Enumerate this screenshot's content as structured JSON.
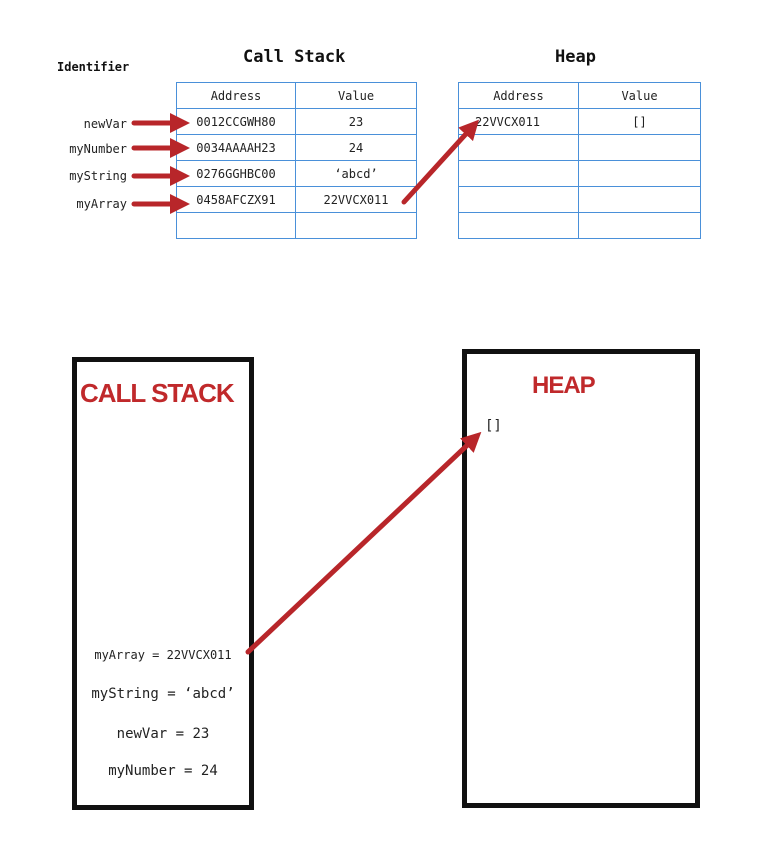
{
  "top": {
    "identifier_header": "Identifier",
    "call_stack_title": "Call Stack",
    "heap_title": "Heap",
    "stack_table": {
      "columns": [
        "Address",
        "Value"
      ],
      "rows": [
        {
          "identifier": "newVar",
          "address": "0012CCGWH80",
          "value": "23"
        },
        {
          "identifier": "myNumber",
          "address": "0034AAAAH23",
          "value": "24"
        },
        {
          "identifier": "myString",
          "address": "0276GGHBC00",
          "value": "‘abcd’"
        },
        {
          "identifier": "myArray",
          "address": "0458AFCZX91",
          "value": "22VVCX011"
        }
      ]
    },
    "heap_table": {
      "columns": [
        "Address",
        "Value"
      ],
      "rows": [
        {
          "address": "22VVCX011",
          "value": "[]"
        }
      ]
    }
  },
  "bottom": {
    "call_stack_title": "CALL STACK",
    "heap_title": "HEAP",
    "stack_entries": [
      "myArray = 22VVCX011",
      "myString = ‘abcd’",
      "newVar = 23",
      "myNumber = 24"
    ],
    "heap_entry": "[]"
  },
  "colors": {
    "arrow": "#b8262a",
    "table_border": "#4a90d9",
    "title_red": "#c0292b"
  }
}
